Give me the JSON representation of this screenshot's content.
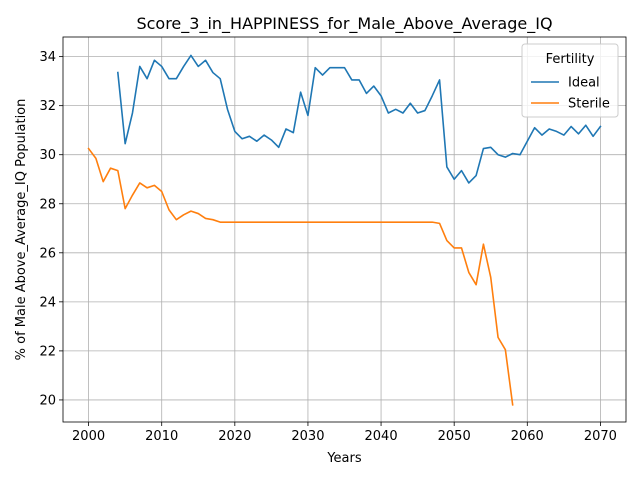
{
  "chart_data": {
    "type": "line",
    "title": "Score_3_in_HAPPINESS_for_Male_Above_Average_IQ",
    "xlabel": "Years",
    "ylabel": "% of Male Above_Average_IQ Population",
    "xlim": [
      1996.5,
      2073.5
    ],
    "ylim": [
      19.1,
      34.8
    ],
    "x_ticks": [
      2000,
      2010,
      2020,
      2030,
      2040,
      2050,
      2060,
      2070
    ],
    "y_ticks": [
      20,
      22,
      24,
      26,
      28,
      30,
      32,
      34
    ],
    "grid": true,
    "legend": {
      "title": "Fertility",
      "placement": "top-right"
    },
    "series": [
      {
        "name": "Ideal",
        "color": "#1f77b4",
        "x": [
          2004,
          2005,
          2006,
          2007,
          2008,
          2009,
          2010,
          2011,
          2012,
          2013,
          2014,
          2015,
          2016,
          2017,
          2018,
          2019,
          2020,
          2021,
          2022,
          2023,
          2024,
          2025,
          2026,
          2027,
          2028,
          2029,
          2030,
          2031,
          2032,
          2033,
          2034,
          2035,
          2036,
          2037,
          2038,
          2039,
          2040,
          2041,
          2042,
          2043,
          2044,
          2045,
          2046,
          2047,
          2048,
          2049,
          2050,
          2051,
          2052,
          2053,
          2054,
          2055,
          2056,
          2057,
          2058,
          2059,
          2060,
          2061,
          2062,
          2063,
          2064,
          2065,
          2066,
          2067,
          2068,
          2069,
          2070
        ],
        "values": [
          33.35,
          30.45,
          31.7,
          33.6,
          33.1,
          33.85,
          33.6,
          33.1,
          33.1,
          33.6,
          34.05,
          33.6,
          33.85,
          33.35,
          33.1,
          31.85,
          30.95,
          30.65,
          30.75,
          30.55,
          30.8,
          30.6,
          30.3,
          31.05,
          30.9,
          32.55,
          31.6,
          33.55,
          33.25,
          33.55,
          33.55,
          33.55,
          33.05,
          33.05,
          32.5,
          32.8,
          32.4,
          31.7,
          31.85,
          31.7,
          32.1,
          31.7,
          31.8,
          32.4,
          33.05,
          29.5,
          29.0,
          29.35,
          28.85,
          29.15,
          30.25,
          30.3,
          30.0,
          29.9,
          30.05,
          30.0,
          30.55,
          31.1,
          30.8,
          31.05,
          30.95,
          30.8,
          31.15,
          30.85,
          31.2,
          30.75,
          31.15
        ]
      },
      {
        "name": "Sterile",
        "color": "#ff7f0e",
        "x": [
          2000,
          2001,
          2002,
          2003,
          2004,
          2005,
          2006,
          2007,
          2008,
          2009,
          2010,
          2011,
          2012,
          2013,
          2014,
          2015,
          2016,
          2017,
          2018,
          2019,
          2020,
          2021,
          2022,
          2023,
          2024,
          2025,
          2026,
          2027,
          2028,
          2029,
          2030,
          2031,
          2032,
          2033,
          2034,
          2035,
          2036,
          2037,
          2038,
          2039,
          2040,
          2041,
          2042,
          2043,
          2044,
          2045,
          2046,
          2047,
          2048,
          2049,
          2050,
          2051,
          2052,
          2053,
          2054,
          2055,
          2056,
          2057,
          2058
        ],
        "values": [
          30.25,
          29.85,
          28.9,
          29.45,
          29.35,
          27.8,
          28.35,
          28.85,
          28.65,
          28.75,
          28.5,
          27.75,
          27.35,
          27.55,
          27.7,
          27.6,
          27.4,
          27.35,
          27.25,
          27.25,
          27.25,
          27.25,
          27.25,
          27.25,
          27.25,
          27.25,
          27.25,
          27.25,
          27.25,
          27.25,
          27.25,
          27.25,
          27.25,
          27.25,
          27.25,
          27.25,
          27.25,
          27.25,
          27.25,
          27.25,
          27.25,
          27.25,
          27.25,
          27.25,
          27.25,
          27.25,
          27.25,
          27.25,
          27.2,
          26.5,
          26.2,
          26.2,
          25.2,
          24.7,
          26.35,
          25.0,
          22.55,
          22.05,
          19.8
        ]
      }
    ]
  }
}
